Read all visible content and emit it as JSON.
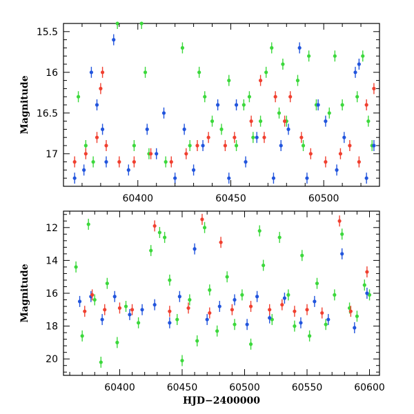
{
  "chart_data": [
    {
      "type": "scatter",
      "title": "",
      "xlabel": "",
      "ylabel": "Magnitude",
      "xlim": [
        60360,
        60530
      ],
      "ylim": [
        17.4,
        15.4
      ],
      "y_inverted": true,
      "grid": false,
      "xticks": [
        60400,
        60450,
        60500
      ],
      "yticks": [
        15.5,
        16,
        16.5,
        17
      ],
      "series": [
        {
          "color": "#3cd83c",
          "points": [
            [
              60368,
              16.3
            ],
            [
              60372,
              16.9
            ],
            [
              60376,
              17.1
            ],
            [
              60389,
              15.4
            ],
            [
              60398,
              16.9
            ],
            [
              60402,
              15.4
            ],
            [
              60404,
              16.0
            ],
            [
              60406,
              17.0
            ],
            [
              60415,
              17.1
            ],
            [
              60424,
              15.7
            ],
            [
              60428,
              16.9
            ],
            [
              60433,
              16.0
            ],
            [
              60436,
              16.3
            ],
            [
              60440,
              16.6
            ],
            [
              60445,
              16.7
            ],
            [
              60449,
              16.1
            ],
            [
              60453,
              16.9
            ],
            [
              60457,
              16.4
            ],
            [
              60460,
              16.3
            ],
            [
              60462,
              16.8
            ],
            [
              60466,
              16.6
            ],
            [
              60469,
              16.0
            ],
            [
              60472,
              15.7
            ],
            [
              60476,
              16.5
            ],
            [
              60478,
              15.9
            ],
            [
              60480,
              16.6
            ],
            [
              60486,
              16.1
            ],
            [
              60489,
              16.9
            ],
            [
              60492,
              15.8
            ],
            [
              60496,
              16.4
            ],
            [
              60503,
              16.5
            ],
            [
              60506,
              15.8
            ],
            [
              60510,
              16.4
            ],
            [
              60518,
              16.3
            ],
            [
              60521,
              15.8
            ],
            [
              60524,
              16.6
            ],
            [
              60526,
              16.9
            ]
          ]
        },
        {
          "color": "#2255dd",
          "points": [
            [
              60366,
              17.3
            ],
            [
              60371,
              17.2
            ],
            [
              60375,
              16.0
            ],
            [
              60378,
              16.4
            ],
            [
              60381,
              16.7
            ],
            [
              60383,
              17.1
            ],
            [
              60387,
              15.6
            ],
            [
              60395,
              17.2
            ],
            [
              60405,
              16.7
            ],
            [
              60410,
              17.0
            ],
            [
              60414,
              16.5
            ],
            [
              60420,
              17.3
            ],
            [
              60425,
              16.7
            ],
            [
              60430,
              17.2
            ],
            [
              60435,
              16.9
            ],
            [
              60443,
              16.4
            ],
            [
              60449,
              17.3
            ],
            [
              60453,
              16.4
            ],
            [
              60458,
              17.1
            ],
            [
              60464,
              16.8
            ],
            [
              60473,
              17.3
            ],
            [
              60477,
              16.9
            ],
            [
              60481,
              16.7
            ],
            [
              60487,
              15.7
            ],
            [
              60491,
              17.3
            ],
            [
              60497,
              16.4
            ],
            [
              60501,
              16.6
            ],
            [
              60507,
              17.2
            ],
            [
              60511,
              16.8
            ],
            [
              60517,
              16.0
            ],
            [
              60519,
              15.9
            ],
            [
              60523,
              17.3
            ],
            [
              60527,
              16.9
            ]
          ]
        },
        {
          "color": "#f04030",
          "points": [
            [
              60366,
              17.1
            ],
            [
              60372,
              17.0
            ],
            [
              60378,
              16.8
            ],
            [
              60380,
              16.2
            ],
            [
              60381,
              16.0
            ],
            [
              60383,
              16.9
            ],
            [
              60390,
              17.1
            ],
            [
              60398,
              17.1
            ],
            [
              60407,
              17.0
            ],
            [
              60418,
              17.1
            ],
            [
              60426,
              17.0
            ],
            [
              60432,
              16.9
            ],
            [
              60438,
              16.8
            ],
            [
              60447,
              16.9
            ],
            [
              60452,
              16.8
            ],
            [
              60461,
              16.6
            ],
            [
              60466,
              16.1
            ],
            [
              60468,
              16.8
            ],
            [
              60474,
              16.3
            ],
            [
              60479,
              16.6
            ],
            [
              60482,
              16.3
            ],
            [
              60488,
              16.8
            ],
            [
              60493,
              17.0
            ],
            [
              60501,
              17.1
            ],
            [
              60509,
              17.0
            ],
            [
              60514,
              16.9
            ],
            [
              60519,
              17.1
            ],
            [
              60523,
              16.4
            ],
            [
              60527,
              16.2
            ]
          ]
        }
      ]
    },
    {
      "type": "scatter",
      "title": "",
      "xlabel": "HJD−2400000",
      "ylabel": "Magnitude",
      "xlim": [
        60355,
        60608
      ],
      "ylim": [
        21,
        11
      ],
      "y_inverted": true,
      "grid": false,
      "xticks": [
        60400,
        60450,
        60500,
        60550,
        60600
      ],
      "yticks": [
        12,
        14,
        16,
        18,
        20
      ],
      "series": [
        {
          "color": "#3cd83c",
          "points": [
            [
              60365,
              14.4
            ],
            [
              60370,
              18.6
            ],
            [
              60375,
              11.8
            ],
            [
              60380,
              16.4
            ],
            [
              60385,
              20.2
            ],
            [
              60390,
              15.4
            ],
            [
              60398,
              19.0
            ],
            [
              60405,
              16.8
            ],
            [
              60415,
              17.8
            ],
            [
              60425,
              13.4
            ],
            [
              60432,
              12.3
            ],
            [
              60436,
              12.6
            ],
            [
              60440,
              15.2
            ],
            [
              60446,
              17.6
            ],
            [
              60450,
              20.1
            ],
            [
              60456,
              16.4
            ],
            [
              60462,
              18.9
            ],
            [
              60468,
              12.0
            ],
            [
              60472,
              15.8
            ],
            [
              60478,
              18.3
            ],
            [
              60486,
              15.0
            ],
            [
              60492,
              17.9
            ],
            [
              60498,
              16.1
            ],
            [
              60505,
              19.1
            ],
            [
              60512,
              12.2
            ],
            [
              60515,
              14.3
            ],
            [
              60522,
              17.6
            ],
            [
              60528,
              12.6
            ],
            [
              60535,
              16.1
            ],
            [
              60540,
              18.0
            ],
            [
              60546,
              13.7
            ],
            [
              60552,
              18.6
            ],
            [
              60558,
              15.4
            ],
            [
              60565,
              17.9
            ],
            [
              60572,
              16.1
            ],
            [
              60578,
              12.4
            ],
            [
              60584,
              16.9
            ],
            [
              60590,
              17.4
            ],
            [
              60596,
              15.5
            ],
            [
              60600,
              16.1
            ]
          ]
        },
        {
          "color": "#2255dd",
          "points": [
            [
              60368,
              16.5
            ],
            [
              60377,
              16.2
            ],
            [
              60386,
              17.6
            ],
            [
              60396,
              16.2
            ],
            [
              60408,
              17.3
            ],
            [
              60418,
              17.0
            ],
            [
              60428,
              16.7
            ],
            [
              60440,
              17.8
            ],
            [
              60448,
              16.2
            ],
            [
              60460,
              13.3
            ],
            [
              60470,
              17.6
            ],
            [
              60480,
              16.8
            ],
            [
              60492,
              16.4
            ],
            [
              60502,
              17.9
            ],
            [
              60510,
              16.2
            ],
            [
              60520,
              17.5
            ],
            [
              60532,
              16.3
            ],
            [
              60545,
              17.8
            ],
            [
              60556,
              16.5
            ],
            [
              60567,
              17.6
            ],
            [
              60578,
              13.6
            ],
            [
              60588,
              18.1
            ],
            [
              60598,
              16.0
            ]
          ]
        },
        {
          "color": "#f04030",
          "points": [
            [
              60372,
              17.1
            ],
            [
              60378,
              16.1
            ],
            [
              60388,
              17.0
            ],
            [
              60400,
              16.9
            ],
            [
              60410,
              17.0
            ],
            [
              60428,
              11.9
            ],
            [
              60440,
              17.1
            ],
            [
              60455,
              16.9
            ],
            [
              60466,
              11.5
            ],
            [
              60472,
              17.2
            ],
            [
              60481,
              12.9
            ],
            [
              60490,
              17.0
            ],
            [
              60505,
              16.8
            ],
            [
              60520,
              17.0
            ],
            [
              60530,
              16.7
            ],
            [
              60540,
              17.1
            ],
            [
              60550,
              17.0
            ],
            [
              60562,
              17.2
            ],
            [
              60576,
              11.6
            ],
            [
              60585,
              17.1
            ],
            [
              60598,
              14.7
            ]
          ]
        }
      ]
    }
  ]
}
